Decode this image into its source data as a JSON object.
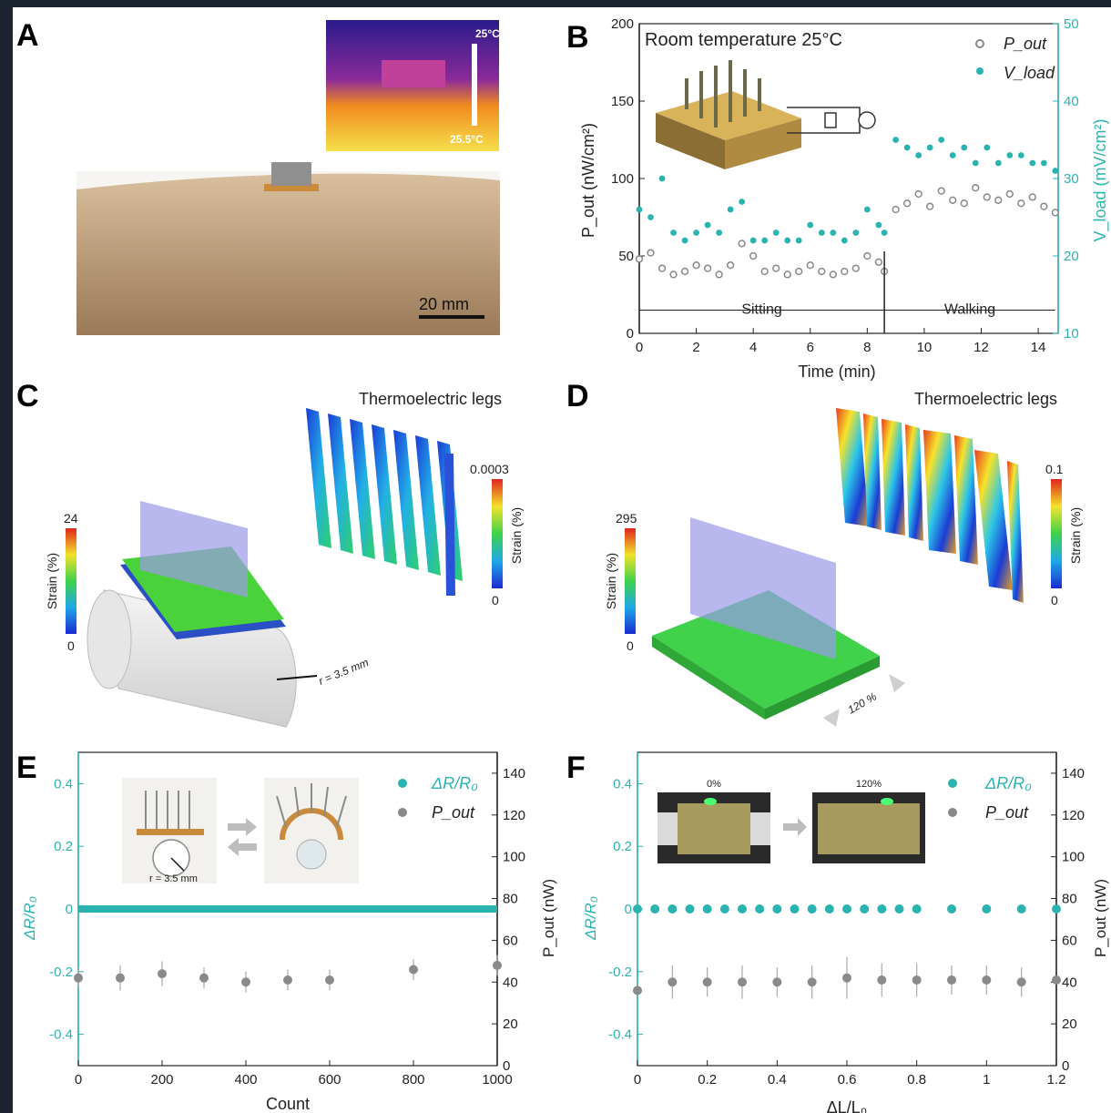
{
  "panels": {
    "A": {
      "letter": "A",
      "thermal_top": "25°C",
      "thermal_bottom": "25.5°C",
      "scale": "20 mm"
    },
    "B": {
      "letter": "B",
      "title": "Room temperature 25°C",
      "xlabel": "Time (min)",
      "ylabel_left": "P_out (nW/cm²)",
      "ylabel_right": "V_load (mV/cm²)",
      "seg_sitting": "Sitting",
      "seg_walking": "Walking"
    },
    "C": {
      "letter": "C",
      "legs_title": "Thermoelectric legs",
      "cb_small_max": "0.0003",
      "cb_small_min": "0",
      "cb_small_label": "Strain (%)",
      "cb_big_max": "24",
      "cb_big_min": "0",
      "cb_big_label": "Strain (%)",
      "radius": "r = 3.5 mm"
    },
    "D": {
      "letter": "D",
      "legs_title": "Thermoelectric legs",
      "cb_small_max": "0.1",
      "cb_small_min": "0",
      "cb_small_label": "Strain (%)",
      "cb_big_max": "295",
      "cb_big_min": "0",
      "cb_big_label": "Strain (%)",
      "strain_text": "120 %"
    },
    "E": {
      "letter": "E",
      "xlabel": "Count",
      "ylabel_left": "ΔR/R₀",
      "ylabel_right": "P_out (nW)",
      "inset_label": "r = 3.5 mm",
      "legend_dr": "ΔR/R₀",
      "legend_p": "P_out"
    },
    "F": {
      "letter": "F",
      "xlabel": "ΔL/L₀",
      "ylabel_left": "ΔR/R₀",
      "ylabel_right": "P_out (nW)",
      "photo_left": "0%",
      "photo_right": "120%",
      "legend_dr": "ΔR/R₀",
      "legend_p": "P_out"
    }
  },
  "colors": {
    "teal": "#2bb3b0",
    "grey": "#8a8a8a",
    "axis": "#222222"
  },
  "chart_data": [
    {
      "id": "B",
      "type": "scatter",
      "title": "Room temperature 25°C",
      "xlabel": "Time (min)",
      "ylabel": "P_out (nW/cm²)",
      "y2label": "V_load (mV/cm²)",
      "xlim": [
        0,
        14.7
      ],
      "ylim": [
        0,
        200
      ],
      "y2lim": [
        10,
        50
      ],
      "xticks": [
        0,
        2,
        4,
        6,
        8,
        10,
        12,
        14
      ],
      "yticks": [
        0,
        50,
        100,
        150,
        200
      ],
      "y2ticks": [
        10,
        20,
        30,
        40,
        50
      ],
      "series": [
        {
          "name": "P_out",
          "axis": "left",
          "x": [
            0,
            0.4,
            0.8,
            1.2,
            1.6,
            2,
            2.4,
            2.8,
            3.2,
            3.6,
            4,
            4.4,
            4.8,
            5.2,
            5.6,
            6,
            6.4,
            6.8,
            7.2,
            7.6,
            8,
            8.4,
            8.6,
            9,
            9.4,
            9.8,
            10.2,
            10.6,
            11,
            11.4,
            11.8,
            12.2,
            12.6,
            13,
            13.4,
            13.8,
            14.2,
            14.6
          ],
          "y": [
            48,
            52,
            42,
            38,
            40,
            44,
            42,
            38,
            44,
            58,
            50,
            40,
            42,
            38,
            40,
            44,
            40,
            38,
            40,
            42,
            50,
            46,
            40,
            80,
            84,
            90,
            82,
            92,
            86,
            84,
            94,
            88,
            86,
            90,
            84,
            88,
            82,
            78
          ]
        },
        {
          "name": "V_load",
          "axis": "right",
          "x": [
            0,
            0.4,
            0.8,
            1.2,
            1.6,
            2,
            2.4,
            2.8,
            3.2,
            3.6,
            4,
            4.4,
            4.8,
            5.2,
            5.6,
            6,
            6.4,
            6.8,
            7.2,
            7.6,
            8,
            8.4,
            8.6,
            9,
            9.4,
            9.8,
            10.2,
            10.6,
            11,
            11.4,
            11.8,
            12.2,
            12.6,
            13,
            13.4,
            13.8,
            14.2,
            14.6
          ],
          "y": [
            26,
            25,
            30,
            23,
            22,
            23,
            24,
            23,
            26,
            27,
            22,
            22,
            23,
            22,
            22,
            24,
            23,
            23,
            22,
            23,
            26,
            24,
            23,
            35,
            34,
            33,
            34,
            35,
            33,
            34,
            32,
            34,
            32,
            33,
            33,
            32,
            32,
            31
          ]
        }
      ],
      "annotations": [
        {
          "text": "Sitting",
          "x_range": [
            0,
            8.6
          ]
        },
        {
          "text": "Walking",
          "x_range": [
            8.6,
            14.6
          ]
        }
      ]
    },
    {
      "id": "E",
      "type": "scatter",
      "xlabel": "Count",
      "ylabel": "ΔR/R₀",
      "y2label": "P_out (nW)",
      "xlim": [
        0,
        1000
      ],
      "ylim": [
        -0.5,
        0.5
      ],
      "y2lim": [
        0,
        150
      ],
      "xticks": [
        0,
        200,
        400,
        600,
        800,
        1000
      ],
      "yticks": [
        -0.4,
        -0.2,
        0.0,
        0.2,
        0.4
      ],
      "y2ticks": [
        0,
        20,
        40,
        60,
        80,
        100,
        120,
        140
      ],
      "series": [
        {
          "name": "ΔR/R₀",
          "axis": "left",
          "x_range": [
            0,
            1000
          ],
          "value": 0.0
        },
        {
          "name": "P_out",
          "axis": "right",
          "x": [
            0,
            100,
            200,
            300,
            400,
            500,
            600,
            800,
            1000
          ],
          "y": [
            42,
            42,
            44,
            42,
            40,
            41,
            41,
            46,
            48
          ],
          "err": [
            5,
            6,
            6,
            5,
            5,
            5,
            5,
            5,
            5
          ]
        }
      ]
    },
    {
      "id": "F",
      "type": "scatter",
      "xlabel": "ΔL/L₀",
      "ylabel": "ΔR/R₀",
      "y2label": "P_out (nW)",
      "xlim": [
        0,
        1.2
      ],
      "ylim": [
        -0.5,
        0.5
      ],
      "y2lim": [
        0,
        150
      ],
      "xticks": [
        0.0,
        0.2,
        0.4,
        0.6,
        0.8,
        1.0,
        1.2
      ],
      "yticks": [
        -0.4,
        -0.2,
        0.0,
        0.2,
        0.4
      ],
      "y2ticks": [
        0,
        20,
        40,
        60,
        80,
        100,
        120,
        140
      ],
      "series": [
        {
          "name": "ΔR/R₀",
          "axis": "left",
          "x": [
            0,
            0.05,
            0.1,
            0.15,
            0.2,
            0.25,
            0.3,
            0.35,
            0.4,
            0.45,
            0.5,
            0.55,
            0.6,
            0.65,
            0.7,
            0.75,
            0.8,
            0.9,
            1.0,
            1.1,
            1.2
          ],
          "y": [
            0,
            0,
            0,
            0,
            0,
            0,
            0,
            0,
            0,
            0,
            0,
            0,
            0,
            0,
            0,
            0,
            0,
            0,
            0,
            0,
            0
          ]
        },
        {
          "name": "P_out",
          "axis": "right",
          "x": [
            0,
            0.1,
            0.2,
            0.3,
            0.4,
            0.5,
            0.6,
            0.7,
            0.8,
            0.9,
            1.0,
            1.1,
            1.2
          ],
          "y": [
            36,
            40,
            40,
            40,
            40,
            40,
            42,
            41,
            41,
            41,
            41,
            40,
            41
          ],
          "err": [
            0,
            8,
            7,
            8,
            7,
            8,
            10,
            8,
            8,
            7,
            7,
            7,
            0
          ]
        }
      ]
    }
  ]
}
